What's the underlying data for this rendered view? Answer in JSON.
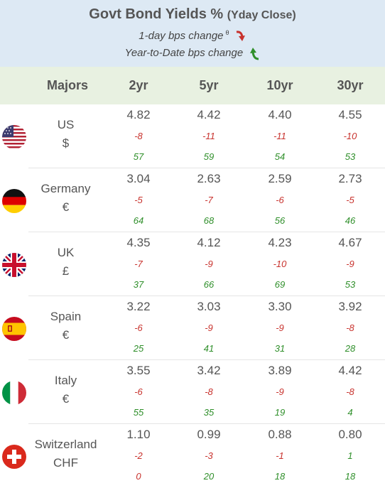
{
  "header": {
    "title_main": "Govt Bond Yields %",
    "title_sub": "(Yday Close)",
    "legend_1day": "1-day bps change",
    "legend_1day_sup": "θ",
    "legend_ytd": "Year-to-Date bps change"
  },
  "colors": {
    "header_bg": "#dde9f4",
    "colhead_bg": "#e8f1e1",
    "negative": "#c8322d",
    "positive": "#2f8f2a"
  },
  "columns": {
    "majors": "Majors",
    "c2": "2yr",
    "c5": "5yr",
    "c10": "10yr",
    "c30": "30yr"
  },
  "rows": [
    {
      "country": "US",
      "currency": "$",
      "flag": "us-flag",
      "yields": [
        "4.82",
        "4.42",
        "4.40",
        "4.55"
      ],
      "day": [
        "-8",
        "-11",
        "-11",
        "-10"
      ],
      "ytd": [
        "57",
        "59",
        "54",
        "53"
      ]
    },
    {
      "country": "Germany",
      "currency": "€",
      "flag": "germany-flag",
      "yields": [
        "3.04",
        "2.63",
        "2.59",
        "2.73"
      ],
      "day": [
        "-5",
        "-7",
        "-6",
        "-5"
      ],
      "ytd": [
        "64",
        "68",
        "56",
        "46"
      ]
    },
    {
      "country": "UK",
      "currency": "£",
      "flag": "uk-flag",
      "yields": [
        "4.35",
        "4.12",
        "4.23",
        "4.67"
      ],
      "day": [
        "-7",
        "-9",
        "-10",
        "-9"
      ],
      "ytd": [
        "37",
        "66",
        "69",
        "53"
      ]
    },
    {
      "country": "Spain",
      "currency": "€",
      "flag": "spain-flag",
      "yields": [
        "3.22",
        "3.03",
        "3.30",
        "3.92"
      ],
      "day": [
        "-6",
        "-9",
        "-9",
        "-8"
      ],
      "ytd": [
        "25",
        "41",
        "31",
        "28"
      ]
    },
    {
      "country": "Italy",
      "currency": "€",
      "flag": "italy-flag",
      "yields": [
        "3.55",
        "3.42",
        "3.89",
        "4.42"
      ],
      "day": [
        "-6",
        "-8",
        "-9",
        "-8"
      ],
      "ytd": [
        "55",
        "35",
        "19",
        "4"
      ]
    },
    {
      "country": "Switzerland",
      "currency": "CHF",
      "flag": "switzerland-flag",
      "yields": [
        "1.10",
        "0.99",
        "0.88",
        "0.80"
      ],
      "day": [
        "-2",
        "-3",
        "-1",
        "1"
      ],
      "ytd": [
        "0",
        "20",
        "18",
        "18"
      ],
      "day_colors": [
        "neg",
        "neg",
        "neg",
        "pos"
      ],
      "ytd_colors": [
        "neg",
        "pos",
        "pos",
        "pos"
      ]
    }
  ]
}
